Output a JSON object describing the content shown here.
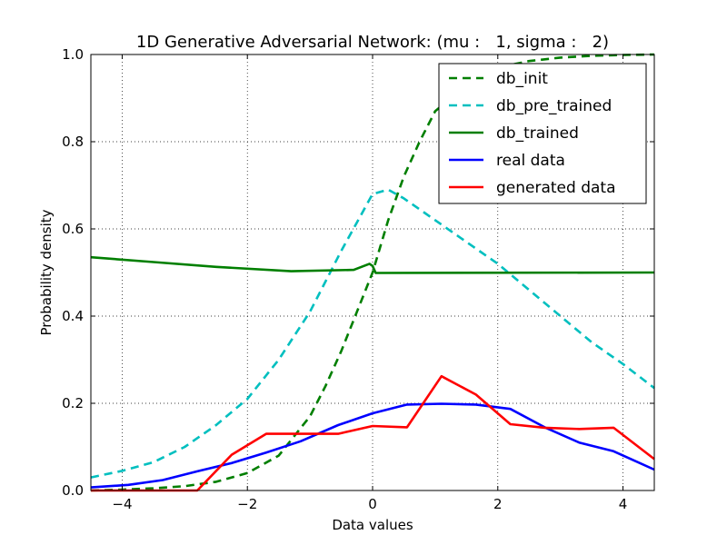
{
  "chart_data": {
    "type": "line",
    "title": "1D Generative Adversarial Network: (mu :   1, sigma :   2)",
    "xlabel": "Data values",
    "ylabel": "Probability density",
    "xlim": [
      -4.5,
      4.5
    ],
    "ylim": [
      0.0,
      1.0
    ],
    "xticks": [
      -4,
      -2,
      0,
      2,
      4
    ],
    "xtick_labels": [
      "−4",
      "−2",
      "0",
      "2",
      "4"
    ],
    "yticks": [
      0.0,
      0.2,
      0.4,
      0.6,
      0.8,
      1.0
    ],
    "ytick_labels": [
      "0.0",
      "0.2",
      "0.4",
      "0.6",
      "0.8",
      "1.0"
    ],
    "grid": true,
    "legend_position": "top-right",
    "series": [
      {
        "name": "db_init",
        "color": "#007f00",
        "dash": "dashed",
        "x": [
          -4.5,
          -4.0,
          -3.5,
          -3.0,
          -2.5,
          -2.0,
          -1.5,
          -1.0,
          -0.75,
          -0.5,
          -0.25,
          0.0,
          0.25,
          0.5,
          0.75,
          1.0,
          1.5,
          2.0,
          2.5,
          3.0,
          3.5,
          4.0,
          4.5
        ],
        "y": [
          0.0,
          0.002,
          0.005,
          0.01,
          0.02,
          0.04,
          0.08,
          0.17,
          0.24,
          0.32,
          0.41,
          0.5,
          0.62,
          0.72,
          0.8,
          0.87,
          0.93,
          0.97,
          0.985,
          0.993,
          0.997,
          0.999,
          1.0
        ]
      },
      {
        "name": "db_pre_trained",
        "color": "#00bfbf",
        "dash": "dashed",
        "x": [
          -4.5,
          -4.0,
          -3.5,
          -3.0,
          -2.5,
          -2.0,
          -1.5,
          -1.0,
          -0.5,
          0.0,
          0.25,
          0.5,
          1.0,
          1.5,
          2.0,
          2.5,
          3.0,
          3.5,
          4.0,
          4.5
        ],
        "y": [
          0.03,
          0.045,
          0.065,
          0.1,
          0.15,
          0.21,
          0.3,
          0.41,
          0.55,
          0.68,
          0.69,
          0.67,
          0.62,
          0.57,
          0.52,
          0.46,
          0.4,
          0.34,
          0.29,
          0.235
        ]
      },
      {
        "name": "db_trained",
        "color": "#007f00",
        "dash": "solid",
        "x": [
          -4.5,
          -3.5,
          -2.5,
          -1.3,
          -0.3,
          -0.05,
          0.0,
          0.05,
          4.5
        ],
        "y": [
          0.535,
          0.524,
          0.513,
          0.503,
          0.506,
          0.52,
          0.515,
          0.499,
          0.5
        ]
      },
      {
        "name": "real data",
        "color": "#0000ff",
        "dash": "solid",
        "x": [
          -4.5,
          -3.9,
          -3.35,
          -2.8,
          -2.25,
          -1.7,
          -1.15,
          -0.55,
          0.0,
          0.55,
          1.1,
          1.65,
          2.2,
          2.75,
          3.3,
          3.85,
          4.5
        ],
        "y": [
          0.007,
          0.013,
          0.024,
          0.044,
          0.063,
          0.087,
          0.113,
          0.15,
          0.177,
          0.197,
          0.199,
          0.197,
          0.187,
          0.145,
          0.11,
          0.09,
          0.048
        ]
      },
      {
        "name": "generated data",
        "color": "#ff0000",
        "dash": "solid",
        "x": [
          -4.5,
          -2.8,
          -2.25,
          -1.7,
          -1.15,
          -0.55,
          0.0,
          0.55,
          1.1,
          1.65,
          2.2,
          2.75,
          3.3,
          3.85,
          4.5
        ],
        "y": [
          0.0,
          0.0,
          0.082,
          0.13,
          0.13,
          0.13,
          0.148,
          0.145,
          0.262,
          0.22,
          0.152,
          0.144,
          0.141,
          0.144,
          0.072
        ]
      }
    ]
  }
}
